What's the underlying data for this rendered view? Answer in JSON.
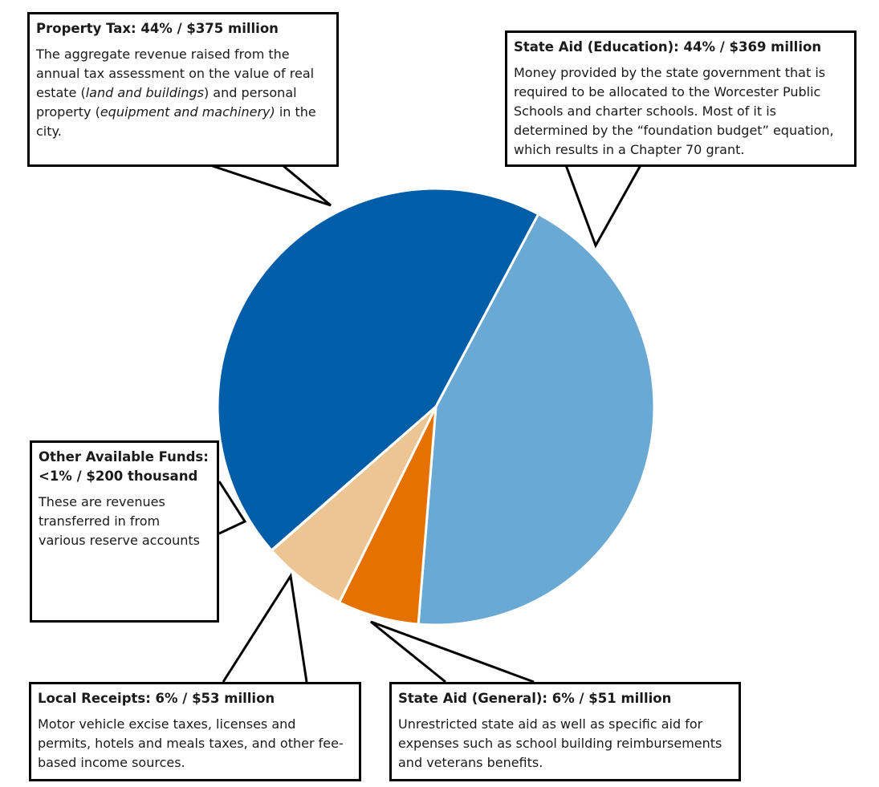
{
  "chart_data": {
    "type": "pie",
    "slices": [
      {
        "label": "Property Tax",
        "percent_label": "44%",
        "amount": "$375 million",
        "value": 375,
        "color": "#005da8"
      },
      {
        "label": "State Aid (Education)",
        "percent_label": "44%",
        "amount": "$369 million",
        "value": 369,
        "color": "#6aa9d4"
      },
      {
        "label": "State Aid (General)",
        "percent_label": "6%",
        "amount": "$51 million",
        "value": 51,
        "color": "#e57200"
      },
      {
        "label": "Local Receipts",
        "percent_label": "6%",
        "amount": "$53 million",
        "value": 53,
        "color": "#edc493"
      },
      {
        "label": "Other Available Funds",
        "percent_label": "<1%",
        "amount": "$200 thousand",
        "value": 0.2,
        "color": "#ffffff"
      }
    ]
  },
  "callouts": {
    "property_tax": {
      "title": "Property Tax: 44% / $375 million",
      "body_1": "The aggregate revenue raised from the annual tax assessment on the value of real estate (",
      "body_2": "land and buildings",
      "body_3": ") and personal property (",
      "body_4": "equipment and machinery)",
      "body_5": " in the city."
    },
    "state_aid_education": {
      "title": "State Aid (Education): 44% / $369 million",
      "body": "Money provided by the state government that is required to be allocated to the Worcester Public Schools and charter schools. Most of it is determined by the “foundation budget” equation, which results in a Chapter 70 grant."
    },
    "other_funds": {
      "title": "Other Available Funds: <1% / $200 thousand",
      "body": "These are revenues transferred in from various reserve accounts"
    },
    "local_receipts": {
      "title": "Local Receipts: 6% / $53 million",
      "body": "Motor vehicle excise taxes, licenses and permits, hotels and meals taxes, and other fee-based income sources."
    },
    "state_aid_general": {
      "title": "State Aid (General): 6% / $51 million",
      "body": "Unrestricted state aid as well as specific aid for expenses such as school building reimbursements and veterans benefits."
    }
  }
}
